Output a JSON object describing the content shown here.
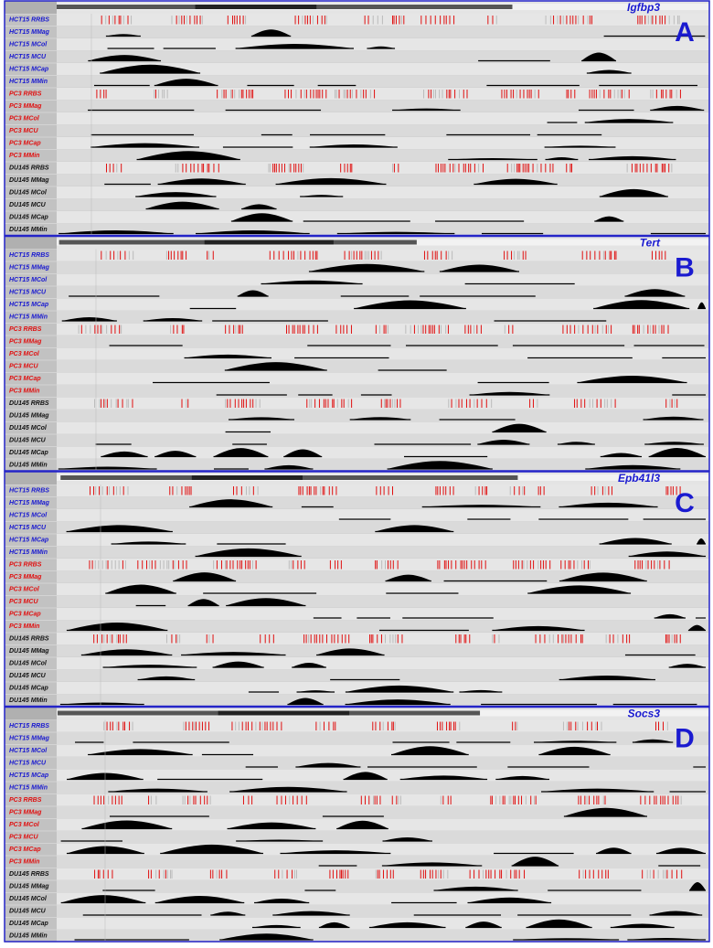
{
  "tracks": [
    "HCT15 RRBS",
    "HCT15 MMag",
    "HCT15 MCol",
    "HCT15 MCU",
    "HCT15 MCap",
    "HCT15 MMin",
    "PC3 RRBS",
    "PC3 MMag",
    "PC3 MCol",
    "PC3 MCU",
    "PC3 MCap",
    "PC3 MMin",
    "DU145 RRBS",
    "DU145 MMag",
    "DU145 MCol",
    "DU145 MCU",
    "DU145 MCap",
    "DU145 MMin"
  ],
  "panels": [
    {
      "letter": "A",
      "gene": "Igfbp3"
    },
    {
      "letter": "B",
      "gene": "Tert"
    },
    {
      "letter": "C",
      "gene": "Epb41l3"
    },
    {
      "letter": "D",
      "gene": "Socs3"
    }
  ]
}
